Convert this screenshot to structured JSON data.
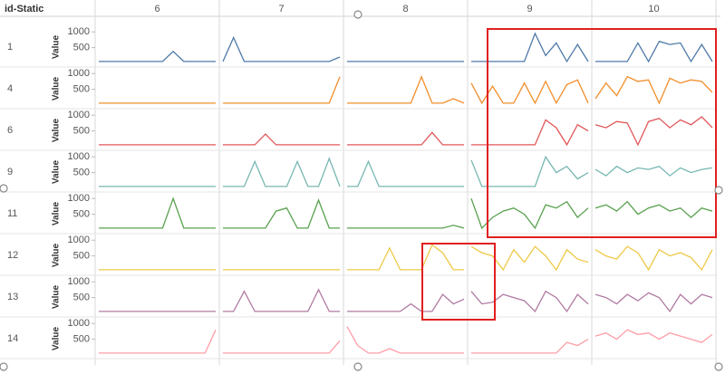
{
  "chart_data": {
    "type": "line-grid",
    "header": "id-Static",
    "y_label": "Value",
    "columns": [
      6,
      7,
      8,
      9,
      10
    ],
    "ylim": [
      0,
      1150
    ],
    "yticks": [
      500,
      1000
    ],
    "series": [
      {
        "name": "1",
        "color": "#4e79a7",
        "values": [
          [
            60,
            60,
            60,
            60,
            60,
            60,
            60,
            380,
            60,
            60,
            60,
            60
          ],
          [
            60,
            820,
            60,
            60,
            60,
            60,
            60,
            60,
            60,
            60,
            60,
            200
          ],
          [
            60,
            60,
            60,
            60,
            60,
            60,
            60,
            60,
            60,
            60,
            60,
            60
          ],
          [
            60,
            60,
            60,
            60,
            60,
            60,
            950,
            250,
            650,
            60,
            600,
            60
          ],
          [
            60,
            60,
            60,
            60,
            650,
            60,
            700,
            600,
            650,
            60,
            600,
            60
          ]
        ]
      },
      {
        "name": "4",
        "color": "#f28e2b",
        "values": [
          [
            60,
            60,
            60,
            60,
            60,
            60,
            60,
            60,
            60,
            60,
            60,
            60
          ],
          [
            60,
            60,
            60,
            60,
            60,
            60,
            60,
            60,
            60,
            60,
            60,
            900
          ],
          [
            60,
            60,
            60,
            60,
            60,
            60,
            60,
            900,
            60,
            60,
            200,
            60
          ],
          [
            700,
            60,
            600,
            60,
            60,
            700,
            60,
            750,
            60,
            650,
            800,
            60
          ],
          [
            200,
            700,
            300,
            900,
            750,
            800,
            60,
            850,
            700,
            800,
            750,
            400
          ]
        ]
      },
      {
        "name": "6",
        "color": "#e15759",
        "values": [
          [
            60,
            60,
            60,
            60,
            60,
            60,
            60,
            60,
            60,
            60,
            60,
            60
          ],
          [
            60,
            60,
            60,
            60,
            400,
            60,
            60,
            60,
            60,
            60,
            60,
            60
          ],
          [
            60,
            60,
            60,
            60,
            60,
            60,
            60,
            60,
            450,
            60,
            60,
            60
          ],
          [
            60,
            60,
            60,
            60,
            60,
            60,
            60,
            850,
            600,
            60,
            700,
            500
          ],
          [
            700,
            600,
            800,
            750,
            60,
            800,
            900,
            600,
            850,
            700,
            950,
            600
          ]
        ]
      },
      {
        "name": "9",
        "color": "#76b7b2",
        "values": [
          [
            60,
            60,
            60,
            60,
            60,
            60,
            60,
            60,
            60,
            60,
            60,
            60
          ],
          [
            60,
            60,
            60,
            850,
            60,
            60,
            60,
            850,
            60,
            60,
            950,
            60
          ],
          [
            60,
            60,
            850,
            60,
            60,
            60,
            60,
            60,
            60,
            60,
            60,
            60
          ],
          [
            900,
            60,
            60,
            60,
            60,
            60,
            60,
            1000,
            500,
            700,
            300,
            500
          ],
          [
            600,
            400,
            700,
            500,
            650,
            600,
            700,
            400,
            650,
            500,
            600,
            650
          ]
        ]
      },
      {
        "name": "11",
        "color": "#59a14f",
        "values": [
          [
            60,
            60,
            60,
            60,
            60,
            60,
            60,
            1000,
            60,
            60,
            60,
            60
          ],
          [
            60,
            60,
            60,
            60,
            60,
            600,
            700,
            60,
            60,
            950,
            60,
            60
          ],
          [
            60,
            60,
            60,
            60,
            60,
            60,
            60,
            60,
            60,
            60,
            150,
            60
          ],
          [
            1000,
            60,
            400,
            600,
            700,
            500,
            60,
            800,
            700,
            900,
            400,
            700
          ],
          [
            700,
            800,
            600,
            900,
            500,
            700,
            800,
            600,
            700,
            400,
            700,
            600
          ]
        ]
      },
      {
        "name": "12",
        "color": "#edc948",
        "values": [
          [
            60,
            60,
            60,
            60,
            60,
            60,
            60,
            60,
            60,
            60,
            60,
            60
          ],
          [
            60,
            60,
            60,
            60,
            60,
            60,
            60,
            60,
            60,
            60,
            60,
            60
          ],
          [
            60,
            60,
            60,
            60,
            750,
            60,
            60,
            60,
            850,
            600,
            60,
            60
          ],
          [
            800,
            600,
            500,
            60,
            700,
            300,
            800,
            500,
            60,
            700,
            400,
            300
          ],
          [
            700,
            500,
            400,
            800,
            600,
            60,
            700,
            500,
            600,
            450,
            60,
            700
          ]
        ]
      },
      {
        "name": "13",
        "color": "#b07aa1",
        "values": [
          [
            60,
            60,
            60,
            60,
            60,
            60,
            60,
            60,
            60,
            60,
            60,
            60
          ],
          [
            60,
            60,
            700,
            60,
            60,
            60,
            60,
            60,
            60,
            750,
            60,
            60
          ],
          [
            60,
            60,
            60,
            60,
            60,
            60,
            300,
            60,
            60,
            600,
            300,
            450
          ],
          [
            700,
            300,
            350,
            600,
            500,
            400,
            60,
            700,
            500,
            60,
            600,
            300
          ],
          [
            600,
            500,
            300,
            600,
            400,
            650,
            500,
            60,
            600,
            300,
            600,
            500
          ]
        ]
      },
      {
        "name": "14",
        "color": "#ff9da7",
        "values": [
          [
            60,
            60,
            60,
            60,
            60,
            60,
            60,
            60,
            60,
            60,
            60,
            800
          ],
          [
            60,
            60,
            60,
            60,
            60,
            60,
            60,
            60,
            60,
            60,
            60,
            450
          ],
          [
            900,
            300,
            60,
            60,
            200,
            60,
            60,
            60,
            60,
            60,
            60,
            60
          ],
          [
            60,
            60,
            60,
            60,
            60,
            60,
            60,
            60,
            60,
            400,
            300,
            500
          ],
          [
            600,
            700,
            500,
            800,
            650,
            700,
            500,
            700,
            600,
            500,
            400,
            650
          ]
        ]
      }
    ]
  }
}
